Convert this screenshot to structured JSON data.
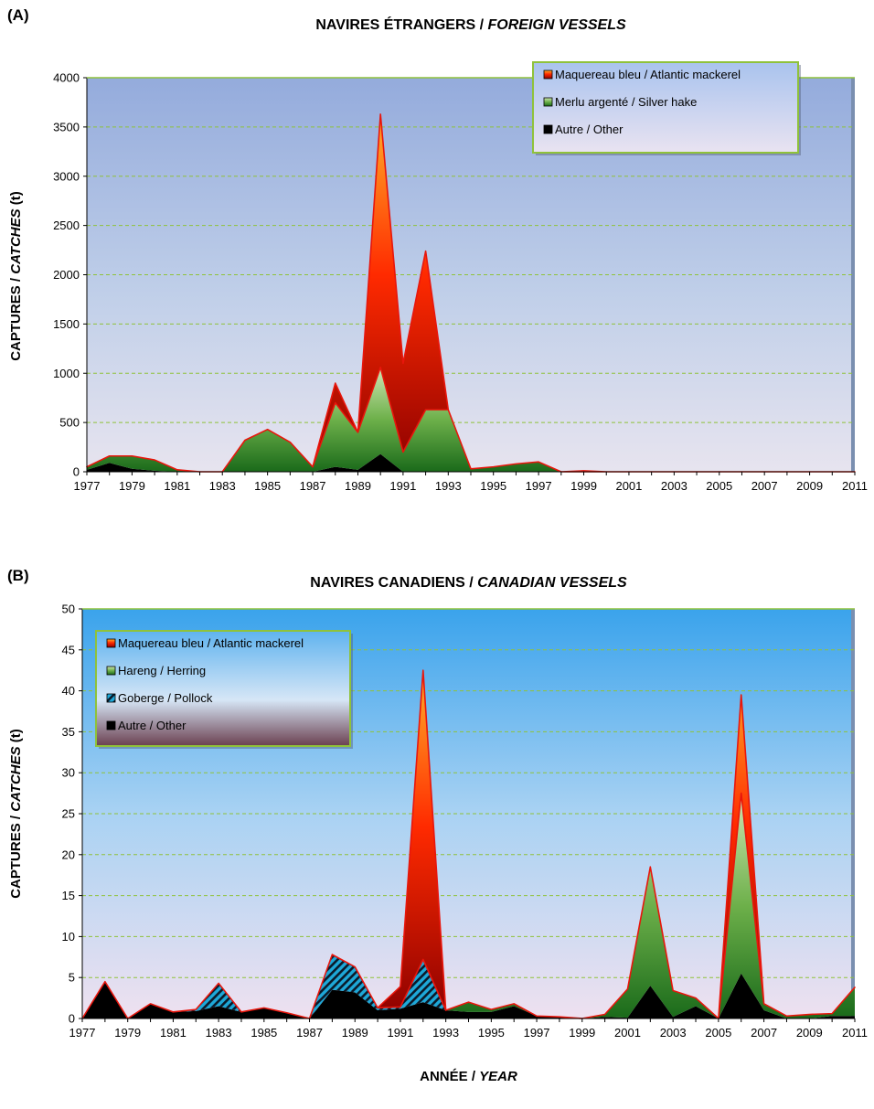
{
  "chart_data": [
    {
      "type": "area",
      "panel": "(A)",
      "title_main": "NAVIRES ÉTRANGERS  /  ",
      "title_italic": "FOREIGN VESSELS",
      "ylabel_main": "CAPTURES   /   ",
      "ylabel_italic": "CATCHES",
      "ylabel_unit": "  (t)",
      "xlabel_main": "",
      "xlabel_italic": "",
      "ylim": [
        0,
        4000
      ],
      "yticks": [
        0,
        500,
        1000,
        1500,
        2000,
        2500,
        3000,
        3500,
        4000
      ],
      "xlim": [
        1977,
        2011
      ],
      "xticks": [
        1977,
        1979,
        1981,
        1983,
        1985,
        1987,
        1989,
        1991,
        1993,
        1995,
        1997,
        1999,
        2001,
        2003,
        2005,
        2007,
        2009,
        2011
      ],
      "grid": true,
      "stacked": true,
      "legend_position": "top-right",
      "x": [
        1977,
        1978,
        1979,
        1980,
        1981,
        1982,
        1983,
        1984,
        1985,
        1986,
        1987,
        1988,
        1989,
        1990,
        1991,
        1992,
        1993,
        1994,
        1995,
        1996,
        1997,
        1998,
        1999,
        2000,
        2001,
        2002,
        2003,
        2004,
        2005,
        2006,
        2007,
        2008,
        2009,
        2010,
        2011
      ],
      "series": [
        {
          "name": "Autre / Other",
          "fill": "black",
          "values": [
            20,
            90,
            30,
            10,
            0,
            0,
            0,
            0,
            0,
            0,
            0,
            50,
            20,
            180,
            0,
            0,
            0,
            0,
            0,
            0,
            0,
            0,
            0,
            0,
            0,
            0,
            0,
            0,
            0,
            0,
            0,
            0,
            0,
            0,
            0
          ]
        },
        {
          "name": "Merlu argenté / Silver hake",
          "fill": "green",
          "values": [
            30,
            70,
            130,
            110,
            20,
            0,
            0,
            320,
            430,
            300,
            50,
            650,
            380,
            880,
            200,
            630,
            630,
            30,
            50,
            80,
            100,
            0,
            0,
            0,
            0,
            0,
            0,
            0,
            0,
            0,
            0,
            0,
            0,
            0,
            0
          ]
        },
        {
          "name": "Maquereau bleu / Atlantic mackerel",
          "fill": "red",
          "values": [
            0,
            0,
            0,
            0,
            0,
            0,
            0,
            0,
            0,
            0,
            0,
            200,
            0,
            2570,
            900,
            1610,
            0,
            0,
            0,
            0,
            0,
            0,
            10,
            0,
            0,
            0,
            0,
            0,
            0,
            0,
            0,
            0,
            0,
            0,
            0
          ]
        }
      ]
    },
    {
      "type": "area",
      "panel": "(B)",
      "title_main": "NAVIRES CANADIENS  /  ",
      "title_italic": "CANADIAN VESSELS",
      "ylabel_main": "CAPTURES  /  ",
      "ylabel_italic": "CATCHES",
      "ylabel_unit": " (t)",
      "xlabel_main": "ANNÉE / ",
      "xlabel_italic": "YEAR",
      "ylim": [
        0,
        50
      ],
      "yticks": [
        0,
        5,
        10,
        15,
        20,
        25,
        30,
        35,
        40,
        45,
        50
      ],
      "xlim": [
        1977,
        2011
      ],
      "xticks": [
        1977,
        1979,
        1981,
        1983,
        1985,
        1987,
        1989,
        1991,
        1993,
        1995,
        1997,
        1999,
        2001,
        2003,
        2005,
        2007,
        2009,
        2011
      ],
      "grid": true,
      "stacked": true,
      "legend_position": "top-left",
      "x": [
        1977,
        1978,
        1979,
        1980,
        1981,
        1982,
        1983,
        1984,
        1985,
        1986,
        1987,
        1988,
        1989,
        1990,
        1991,
        1992,
        1993,
        1994,
        1995,
        1996,
        1997,
        1998,
        1999,
        2000,
        2001,
        2002,
        2003,
        2004,
        2005,
        2006,
        2007,
        2008,
        2009,
        2010,
        2011
      ],
      "series": [
        {
          "name": "Autre / Other",
          "fill": "black",
          "values": [
            0,
            4.5,
            0,
            1.8,
            0.8,
            0.9,
            1.5,
            0.8,
            1.3,
            0.7,
            0,
            3.5,
            3.2,
            1,
            1.2,
            2,
            1,
            0.8,
            0.8,
            1.5,
            0.3,
            0.2,
            0,
            0.2,
            0.1,
            4,
            0.2,
            1.5,
            0,
            5.5,
            1,
            0,
            0,
            0.3,
            0.3
          ]
        },
        {
          "name": "Goberge / Pollock",
          "fill": "hatch",
          "values": [
            0,
            0,
            0,
            0,
            0,
            0.2,
            2.8,
            0,
            0,
            0,
            0,
            4.3,
            3.1,
            0.3,
            0.2,
            5.2,
            0,
            0,
            0,
            0,
            0,
            0,
            0,
            0,
            0,
            0,
            0,
            0,
            0,
            0,
            0,
            0,
            0,
            0,
            0
          ]
        },
        {
          "name": "Hareng / Herring",
          "fill": "green",
          "values": [
            0,
            0,
            0,
            0,
            0,
            0,
            0,
            0,
            0,
            0,
            0,
            0,
            0,
            0,
            0,
            0,
            0,
            1.2,
            0.3,
            0.3,
            0,
            0,
            0,
            0.3,
            3.5,
            14.5,
            3.2,
            1,
            0,
            22,
            0.8,
            0.3,
            0.5,
            0.3,
            3.5
          ]
        },
        {
          "name": "Maquereau bleu / Atlantic mackerel",
          "fill": "red",
          "values": [
            0,
            0,
            0,
            0,
            0,
            0,
            0,
            0,
            0,
            0,
            0,
            0,
            0,
            0,
            2.5,
            35.3,
            0,
            0,
            0,
            0,
            0,
            0,
            0,
            0,
            0,
            0,
            0,
            0,
            0,
            12,
            0,
            0,
            0,
            0,
            0
          ]
        }
      ]
    }
  ]
}
